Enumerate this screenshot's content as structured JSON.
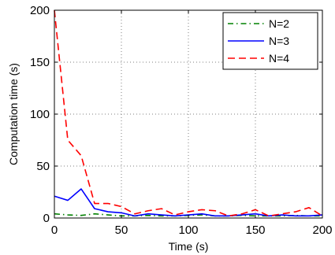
{
  "chart_data": {
    "type": "line",
    "xlabel": "Time (s)",
    "ylabel": "Computation time (s)",
    "xlim": [
      0,
      200
    ],
    "ylim": [
      0,
      200
    ],
    "xticks": [
      0,
      50,
      100,
      150,
      200
    ],
    "yticks": [
      0,
      50,
      100,
      150,
      200
    ],
    "grid": true,
    "grid_style": "dotted",
    "legend_position": "top-right",
    "series": [
      {
        "name": "N=2",
        "color": "#008000",
        "line_style": "dash-dot",
        "x": [
          0,
          10,
          20,
          30,
          40,
          50,
          60,
          70,
          80,
          90,
          100,
          110,
          120,
          130,
          140,
          150,
          160,
          170,
          180,
          190,
          200
        ],
        "y": [
          4,
          3,
          2.5,
          4,
          3,
          2,
          2,
          2.5,
          2,
          2,
          2.5,
          3,
          2,
          2,
          2.5,
          2,
          2,
          2,
          2.5,
          2,
          2
        ]
      },
      {
        "name": "N=3",
        "color": "#0000ff",
        "line_style": "solid",
        "x": [
          0,
          10,
          20,
          30,
          40,
          50,
          60,
          70,
          80,
          90,
          100,
          110,
          120,
          130,
          140,
          150,
          160,
          170,
          180,
          190,
          200
        ],
        "y": [
          21,
          17,
          28,
          9,
          6,
          5,
          2,
          4,
          3,
          2,
          3,
          4,
          2,
          2,
          3,
          4,
          2,
          3,
          2,
          2,
          3
        ]
      },
      {
        "name": "N=4",
        "color": "#ff0000",
        "line_style": "dashed",
        "x": [
          0,
          10,
          20,
          30,
          40,
          50,
          60,
          70,
          80,
          90,
          100,
          110,
          120,
          130,
          140,
          150,
          160,
          170,
          180,
          190,
          200
        ],
        "y": [
          200,
          75,
          60,
          14,
          14,
          11,
          4,
          7,
          9,
          3,
          6,
          8,
          7,
          2,
          4,
          8,
          2,
          4,
          6,
          10,
          2
        ]
      }
    ]
  }
}
